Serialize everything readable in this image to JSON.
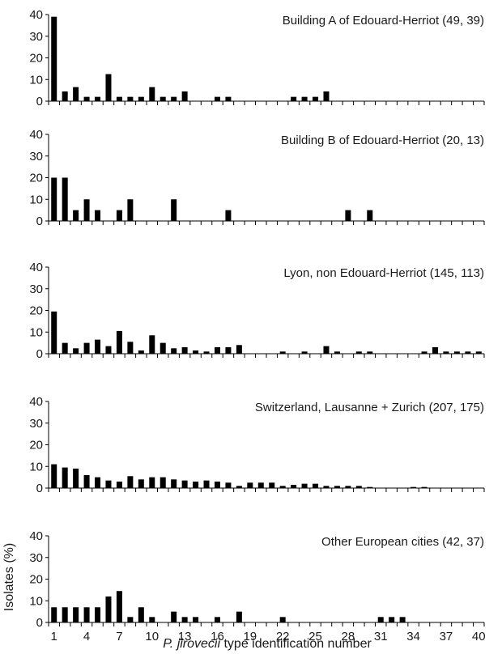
{
  "figure": {
    "ylabel": "Isolates (%)",
    "xlabel_italic": "P. jirovecii",
    "xlabel_rest": " type identification number"
  },
  "chart_data": [
    {
      "type": "bar",
      "title": "Building A of Edouard-Herriot (49, 39)",
      "x": [
        1,
        2,
        3,
        4,
        5,
        6,
        7,
        8,
        9,
        10,
        11,
        12,
        13,
        14,
        15,
        16,
        17,
        18,
        19,
        20,
        21,
        22,
        23,
        24,
        25,
        26,
        27,
        28,
        29,
        30,
        31,
        32,
        33,
        34,
        35,
        36,
        37,
        38,
        39,
        40
      ],
      "values": [
        39,
        4.5,
        6.5,
        2,
        2,
        12.5,
        2,
        2,
        2,
        6.5,
        2,
        2,
        4.5,
        0,
        0,
        2,
        2,
        0,
        0,
        0,
        0,
        0,
        2,
        2,
        2,
        4.5,
        0,
        0,
        0,
        0,
        0,
        0,
        0,
        0,
        0,
        0,
        0,
        0,
        0,
        0
      ],
      "ylim": [
        0,
        40
      ],
      "yticks": [
        0,
        10,
        20,
        30,
        40
      ],
      "xticks": [
        1,
        4,
        7,
        10,
        13,
        16,
        19,
        22,
        25,
        28,
        31,
        34,
        37,
        40
      ]
    },
    {
      "type": "bar",
      "title": "Building B of Edouard-Herriot (20, 13)",
      "x": [
        1,
        2,
        3,
        4,
        5,
        6,
        7,
        8,
        9,
        10,
        11,
        12,
        13,
        14,
        15,
        16,
        17,
        18,
        19,
        20,
        21,
        22,
        23,
        24,
        25,
        26,
        27,
        28,
        29,
        30,
        31,
        32,
        33,
        34,
        35,
        36,
        37,
        38,
        39,
        40
      ],
      "values": [
        20,
        20,
        5,
        10,
        5,
        0,
        5,
        10,
        0,
        0,
        0,
        10,
        0,
        0,
        0,
        0,
        5,
        0,
        0,
        0,
        0,
        0,
        0,
        0,
        0,
        0,
        0,
        5,
        0,
        5,
        0,
        0,
        0,
        0,
        0,
        0,
        0,
        0,
        0,
        0
      ],
      "ylim": [
        0,
        40
      ],
      "yticks": [
        0,
        10,
        20,
        30,
        40
      ],
      "xticks": [
        1,
        4,
        7,
        10,
        13,
        16,
        19,
        22,
        25,
        28,
        31,
        34,
        37,
        40
      ]
    },
    {
      "type": "bar",
      "title": "Lyon, non Edouard-Herriot (145, 113)",
      "x": [
        1,
        2,
        3,
        4,
        5,
        6,
        7,
        8,
        9,
        10,
        11,
        12,
        13,
        14,
        15,
        16,
        17,
        18,
        19,
        20,
        21,
        22,
        23,
        24,
        25,
        26,
        27,
        28,
        29,
        30,
        31,
        32,
        33,
        34,
        35,
        36,
        37,
        38,
        39,
        40
      ],
      "values": [
        19.5,
        5,
        2.5,
        5,
        6.5,
        3.5,
        10.5,
        5.5,
        1.5,
        8.5,
        5,
        2.5,
        3,
        1.5,
        1,
        3,
        3,
        4,
        0,
        0,
        0,
        1,
        0,
        1,
        0,
        3.5,
        1,
        0,
        1,
        1,
        0,
        0,
        0,
        0,
        1,
        3,
        1,
        1,
        1,
        1
      ],
      "ylim": [
        0,
        40
      ],
      "yticks": [
        0,
        10,
        20,
        30,
        40
      ],
      "xticks": [
        1,
        4,
        7,
        10,
        13,
        16,
        19,
        22,
        25,
        28,
        31,
        34,
        37,
        40
      ]
    },
    {
      "type": "bar",
      "title": "Switzerland, Lausanne + Zurich (207, 175)",
      "x": [
        1,
        2,
        3,
        4,
        5,
        6,
        7,
        8,
        9,
        10,
        11,
        12,
        13,
        14,
        15,
        16,
        17,
        18,
        19,
        20,
        21,
        22,
        23,
        24,
        25,
        26,
        27,
        28,
        29,
        30,
        31,
        32,
        33,
        34,
        35,
        36,
        37,
        38,
        39,
        40
      ],
      "values": [
        11,
        9.5,
        9,
        6,
        5,
        3.5,
        3,
        5.5,
        4,
        5,
        5,
        4,
        3.5,
        3,
        3.5,
        3,
        2.5,
        1,
        2.5,
        2.5,
        2.5,
        1,
        1.5,
        2,
        2,
        1,
        1,
        1,
        1,
        0.5,
        0,
        0,
        0,
        0.5,
        0.5,
        0,
        0,
        0,
        0,
        0
      ],
      "ylim": [
        0,
        40
      ],
      "yticks": [
        0,
        10,
        20,
        30,
        40
      ],
      "xticks": [
        1,
        4,
        7,
        10,
        13,
        16,
        19,
        22,
        25,
        28,
        31,
        34,
        37,
        40
      ]
    },
    {
      "type": "bar",
      "title": "Other European cities (42, 37)",
      "x": [
        1,
        2,
        3,
        4,
        5,
        6,
        7,
        8,
        9,
        10,
        11,
        12,
        13,
        14,
        15,
        16,
        17,
        18,
        19,
        20,
        21,
        22,
        23,
        24,
        25,
        26,
        27,
        28,
        29,
        30,
        31,
        32,
        33,
        34,
        35,
        36,
        37,
        38,
        39,
        40
      ],
      "values": [
        7,
        7,
        7,
        7,
        7,
        12,
        14.5,
        2.5,
        7,
        2.5,
        0,
        5,
        2.5,
        2.5,
        0,
        2.5,
        0,
        5,
        0,
        0,
        0,
        2.5,
        0,
        0,
        0,
        0,
        0,
        0,
        0,
        0,
        2.5,
        2.5,
        2.5,
        0,
        0,
        0,
        0,
        0,
        0,
        0
      ],
      "ylim": [
        0,
        40
      ],
      "yticks": [
        0,
        10,
        20,
        30,
        40
      ],
      "xticks": [
        1,
        4,
        7,
        10,
        13,
        16,
        19,
        22,
        25,
        28,
        31,
        34,
        37,
        40
      ]
    }
  ]
}
